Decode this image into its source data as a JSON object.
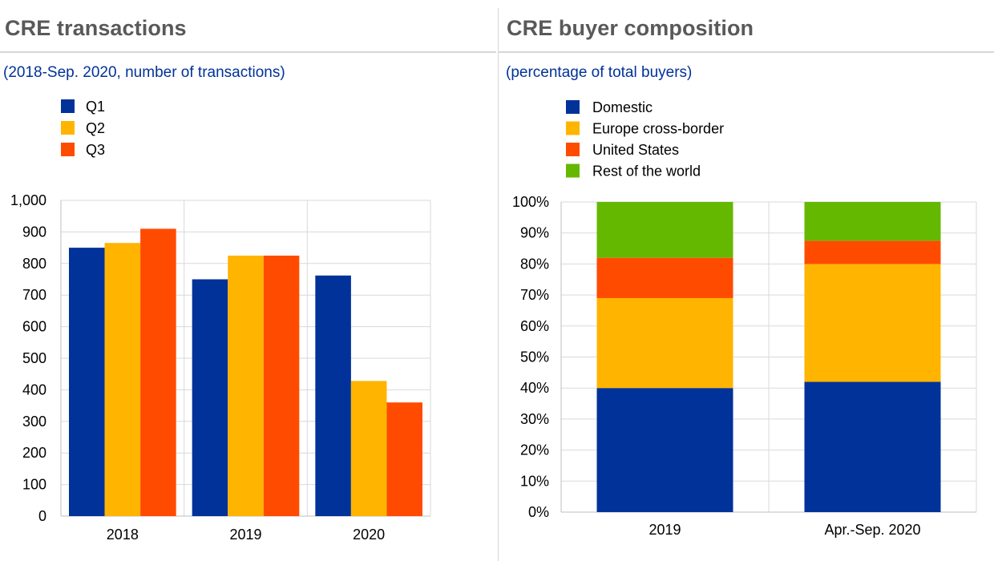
{
  "left_panel": {
    "title": "CRE transactions",
    "subtitle": "(2018-Sep. 2020, number of transactions)"
  },
  "right_panel": {
    "title": "CRE buyer composition",
    "subtitle": "(percentage of total buyers)"
  },
  "chart_data": [
    {
      "type": "bar",
      "title": "CRE transactions",
      "subtitle": "(2018-Sep. 2020, number of transactions)",
      "categories": [
        "2018",
        "2019",
        "2020"
      ],
      "series": [
        {
          "name": "Q1",
          "color": "#003299",
          "values": [
            850,
            750,
            762
          ]
        },
        {
          "name": "Q2",
          "color": "#FFB400",
          "values": [
            865,
            825,
            428
          ]
        },
        {
          "name": "Q3",
          "color": "#FF4B00",
          "values": [
            910,
            825,
            360
          ]
        }
      ],
      "ylim": [
        0,
        1000
      ],
      "yticks": [
        0,
        100,
        200,
        300,
        400,
        500,
        600,
        700,
        800,
        900,
        1000
      ],
      "ytick_labels": [
        "0",
        "100",
        "200",
        "300",
        "400",
        "500",
        "600",
        "700",
        "800",
        "900",
        "1,000"
      ],
      "grid": true,
      "legend_position": "top-left"
    },
    {
      "type": "bar",
      "stacked": true,
      "title": "CRE buyer composition",
      "subtitle": "(percentage of total buyers)",
      "categories": [
        "2019",
        "Apr.-Sep. 2020"
      ],
      "series": [
        {
          "name": "Domestic",
          "color": "#003299",
          "values": [
            40,
            42
          ]
        },
        {
          "name": "Europe cross-border",
          "color": "#FFB400",
          "values": [
            29,
            38
          ]
        },
        {
          "name": "United States",
          "color": "#FF4B00",
          "values": [
            13,
            7.5
          ]
        },
        {
          "name": "Rest of the world",
          "color": "#65B800",
          "values": [
            18,
            12.5
          ]
        }
      ],
      "ylim": [
        0,
        100
      ],
      "yticks": [
        0,
        10,
        20,
        30,
        40,
        50,
        60,
        70,
        80,
        90,
        100
      ],
      "ytick_labels": [
        "0%",
        "10%",
        "20%",
        "30%",
        "40%",
        "50%",
        "60%",
        "70%",
        "80%",
        "90%",
        "100%"
      ],
      "grid": true,
      "legend_position": "top-left"
    }
  ]
}
